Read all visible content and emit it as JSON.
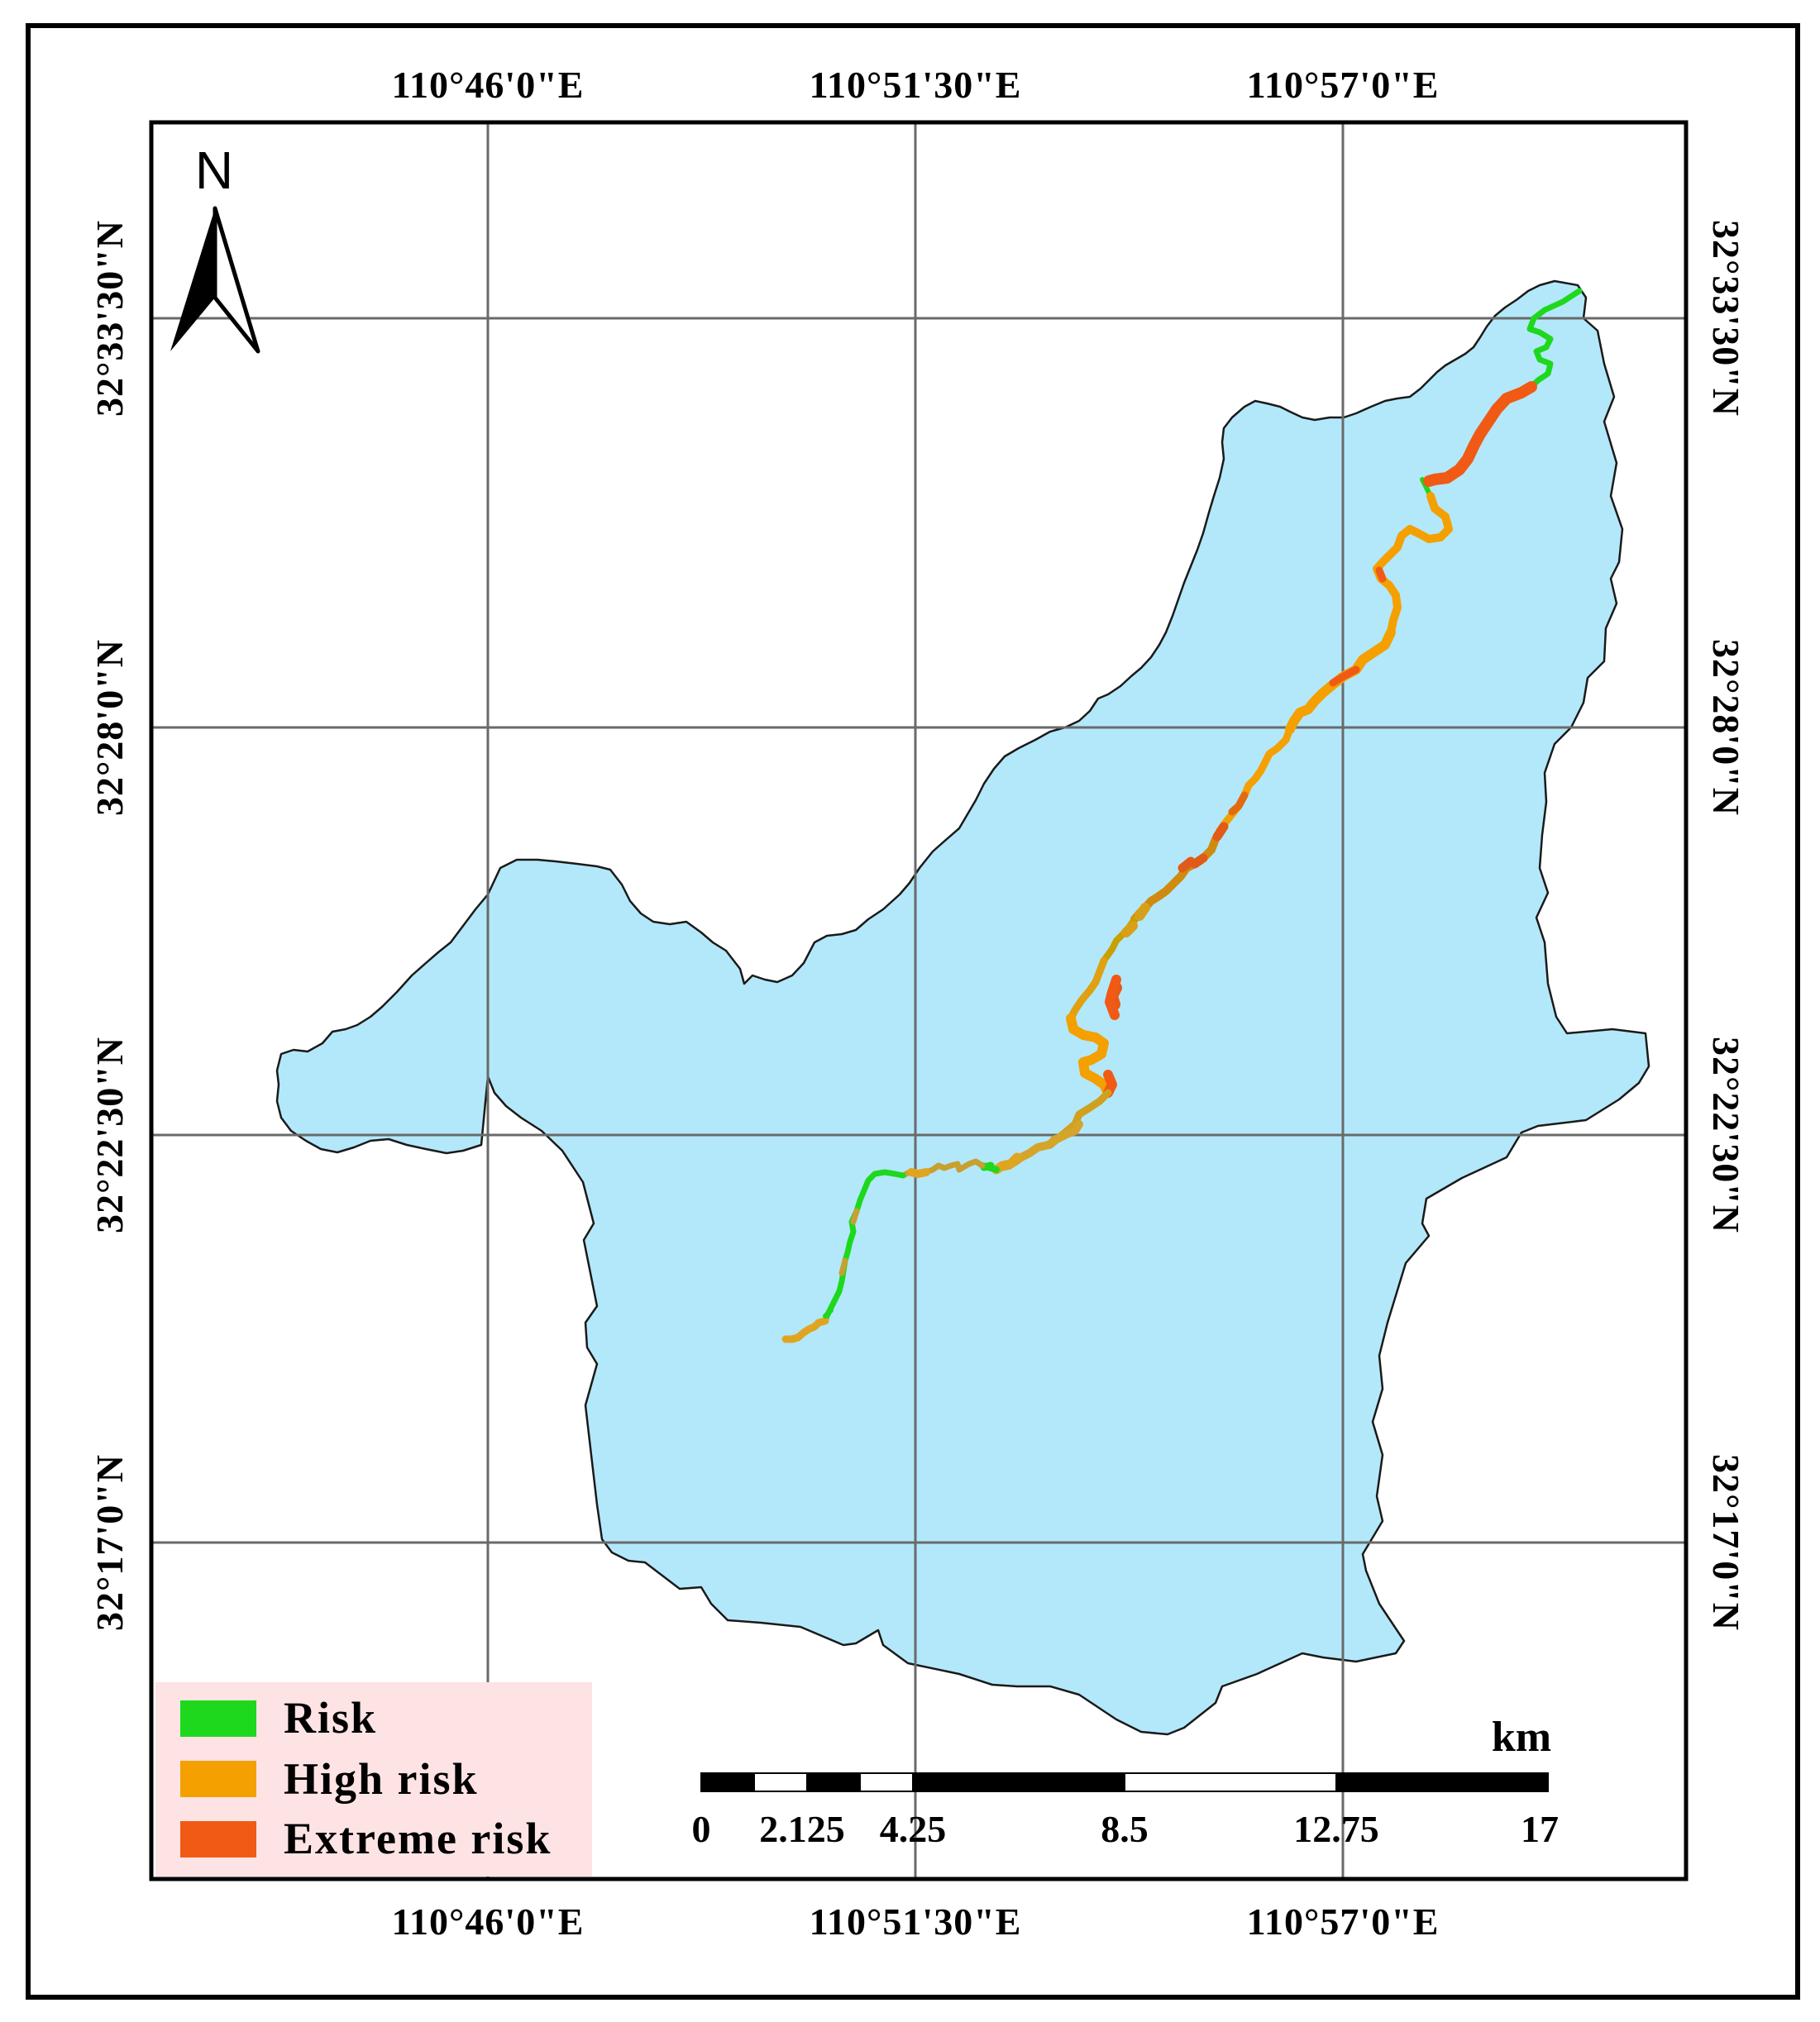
{
  "map": {
    "north_arrow": {
      "label": "N"
    },
    "longitude_labels": [
      "110°46'0\"E",
      "110°51'30\"E",
      "110°57'0\"E"
    ],
    "latitude_labels": [
      "32°33'30\"N",
      "32°28'0\"N",
      "32°22'30\"N",
      "32°17'0\"N"
    ],
    "legend": {
      "items": [
        {
          "label": "Risk",
          "color": "#1ed81e"
        },
        {
          "label": "High risk",
          "color": "#f4a000"
        },
        {
          "label": "Extreme risk",
          "color": "#f05a14"
        }
      ],
      "background": "#fde3e4"
    },
    "scale_bar": {
      "unit": "km",
      "ticks": [
        "0",
        "2.125",
        "4.25",
        "8.5",
        "12.75",
        "17"
      ]
    },
    "colors": {
      "watershed_fill": "#b3e8fa",
      "grid_line": "#6a6a6a",
      "frame": "#000000"
    }
  }
}
